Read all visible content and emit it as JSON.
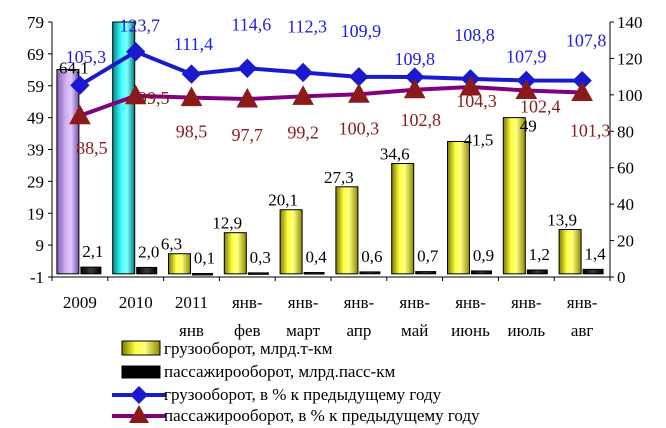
{
  "chart_data": {
    "type": "bar",
    "categories": [
      {
        "line1": "2009",
        "line2": ""
      },
      {
        "line1": "2010",
        "line2": ""
      },
      {
        "line1": "2011",
        "line2": "янв"
      },
      {
        "line1": "янв-",
        "line2": "фев"
      },
      {
        "line1": "янв-",
        "line2": "март"
      },
      {
        "line1": "янв-",
        "line2": "апр"
      },
      {
        "line1": "янв-",
        "line2": "май"
      },
      {
        "line1": "янв-",
        "line2": "июнь"
      },
      {
        "line1": "янв-",
        "line2": "июль"
      },
      {
        "line1": "янв-",
        "line2": "авг"
      }
    ],
    "left_axis": {
      "min": -1,
      "max": 79,
      "ticks": [
        "79",
        "69",
        "59",
        "49",
        "39",
        "29",
        "19",
        "9",
        "-1"
      ]
    },
    "right_axis": {
      "min": 0,
      "max": 140,
      "ticks": [
        "140",
        "120",
        "100",
        "80",
        "60",
        "40",
        "20",
        "0"
      ]
    },
    "series": [
      {
        "name": "грузооборот, млрд.т-км",
        "kind": "bar",
        "axis": "left",
        "values": [
          64.1,
          79,
          6.3,
          12.9,
          20.1,
          27.3,
          34.6,
          41.5,
          49,
          13.9
        ],
        "labels": [
          "64,1",
          "",
          "6,3",
          "12,9",
          "20,1",
          "27,3",
          "34,6",
          "41,5",
          "49",
          "13,9"
        ],
        "colors": [
          "#c9a7e6",
          "#33e0e0",
          "#ffff33",
          "#ffff33",
          "#ffff33",
          "#ffff33",
          "#ffff33",
          "#ffff33",
          "#ffff33",
          "#ffff33"
        ]
      },
      {
        "name": "пассажирооборот, млрд.пасс-км",
        "kind": "bar",
        "axis": "left",
        "values": [
          2.1,
          2.0,
          0.1,
          0.3,
          0.4,
          0.6,
          0.7,
          0.9,
          1.2,
          1.4
        ],
        "labels": [
          "2,1",
          "2,0",
          "0,1",
          "0,3",
          "0,4",
          "0,6",
          "0,7",
          "0,9",
          "1,2",
          "1,4"
        ],
        "color": "#000000"
      },
      {
        "name": "грузооборот, в % к предыдущему году",
        "kind": "line",
        "axis": "right",
        "values": [
          105.3,
          123.7,
          111.4,
          114.6,
          112.3,
          109.9,
          109.8,
          108.8,
          107.9,
          107.8
        ],
        "labels": [
          "105,3",
          "123,7",
          "111,4",
          "114,6",
          "112,3",
          "109,9",
          "109,8",
          "108,8",
          "107,9",
          "107,8"
        ],
        "color": "#1a1acc",
        "label_color": "#2020e0"
      },
      {
        "name": "пассажирооборот, в % к предыдущему году",
        "kind": "line",
        "axis": "right",
        "values": [
          88.5,
          99.5,
          98.5,
          97.7,
          99.2,
          100.3,
          102.8,
          104.3,
          102.4,
          101.3
        ],
        "labels": [
          "88,5",
          "99,5",
          "98,5",
          "97,7",
          "99,2",
          "100,3",
          "102,8",
          "104,3",
          "102,4",
          "101,3"
        ],
        "color": "#800080",
        "marker_color": "#8b1a1a",
        "label_color": "#8b1a1a"
      }
    ],
    "legend": {
      "position": "bottom"
    },
    "grid": false
  }
}
